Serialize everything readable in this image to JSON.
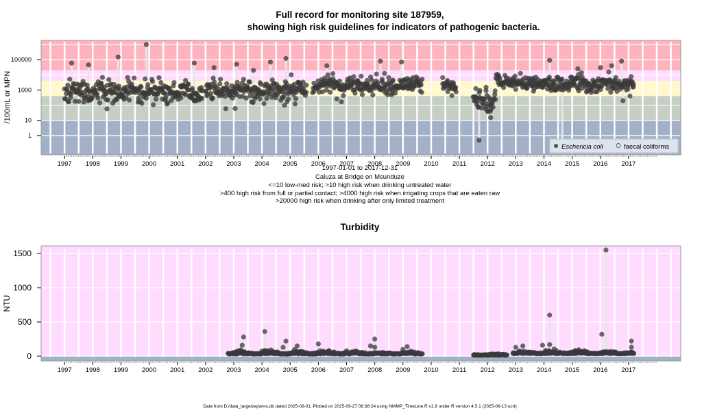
{
  "titles": {
    "main_line1": "Full record for monitoring site 187959,",
    "main_line2": "showing high risk guidelines for indicators of pathogenic bacteria.",
    "turbidity": "Turbidity"
  },
  "subtitles": [
    "1997-01-01 to 2017-12-31",
    "Caluza at Bridge on Msunduze",
    "<=10 low-med risk; >10 high risk when drinking untreated water",
    ">400 high risk from full or partial contact; >4000 high risk when irrigating crops that are eaten raw",
    ">20000 high risk when drinking after only limited treatment"
  ],
  "footer": "Data from D:/data_large/wq/wms.db dated 2025-08-01. Plotted on 2025-09-27 08:38:24 using NMMP_TimeLine.R v1.9 under R version 4.5.1 (2025-06-13 ucrt)",
  "colors": {
    "band_red": "#ffb3bf",
    "band_pink": "#ffdcff",
    "band_yellow": "#fff8cc",
    "band_green": "#c5cfc3",
    "band_blue": "#a2b1c8",
    "turb_bg": "#ffdcff",
    "turb_blue": "#a2b1c8",
    "point": "#3a3a3a",
    "stem": "#e6e6e6",
    "grid": "#ffffff",
    "frame": "#999999"
  },
  "chart_data": [
    {
      "type": "scatter",
      "title": "Full record for monitoring site 187959, showing high risk guidelines for indicators of pathogenic bacteria.",
      "xlabel": "1997-01-01 to 2017-12-31",
      "ylabel": "/100mL or MPN",
      "yscale": "log10",
      "xlim": [
        1996.17,
        2018.85
      ],
      "ylim_log10": [
        -1.27,
        6.27
      ],
      "x_ticks": [
        "1997",
        "1998",
        "1999",
        "2000",
        "2001",
        "2002",
        "2003",
        "2004",
        "2005",
        "2006",
        "2007",
        "2008",
        "2009",
        "2010",
        "2011",
        "2012",
        "2013",
        "2014",
        "2015",
        "2016",
        "2017"
      ],
      "y_ticks": [
        1,
        10,
        1000,
        100000
      ],
      "y_tick_labels": [
        "1",
        "10",
        "1000",
        "100000"
      ],
      "bands": [
        {
          "from": 20000,
          "to": 10000000.0,
          "label": ">20000 high risk when drinking after only limited treatment",
          "color": "band_red"
        },
        {
          "from": 4000,
          "to": 20000,
          "label": ">4000 high risk when irrigating crops that are eaten raw",
          "color": "band_pink"
        },
        {
          "from": 400,
          "to": 4000,
          "label": ">400 high risk from full or partial contact",
          "color": "band_yellow"
        },
        {
          "from": 10,
          "to": 400,
          "label": ">10 high risk when drinking untreated water",
          "color": "band_green"
        },
        {
          "from": 0.01,
          "to": 10,
          "label": "<=10 low-med risk",
          "color": "band_blue"
        }
      ],
      "legend": {
        "position": "bottom-right",
        "entries": [
          "Eschericia coli",
          "faecal coliforms"
        ]
      },
      "segments": [
        {
          "start": 1997.0,
          "end": 2001.9,
          "median_log10": 2.9,
          "spread": 0.35
        },
        {
          "start": 2002.0,
          "end": 2005.6,
          "median_log10": 3.0,
          "spread": 0.33
        },
        {
          "start": 2005.8,
          "end": 2009.7,
          "median_log10": 3.3,
          "spread": 0.3
        },
        {
          "start": 2010.4,
          "end": 2010.9,
          "median_log10": 3.3,
          "spread": 0.25
        },
        {
          "start": 2011.5,
          "end": 2012.3,
          "median_log10": 2.3,
          "spread": 0.4
        },
        {
          "start": 2012.3,
          "end": 2013.0,
          "median_log10": 3.6,
          "spread": 0.2
        },
        {
          "start": 2013.0,
          "end": 2017.2,
          "median_log10": 3.4,
          "spread": 0.25
        }
      ],
      "outliers": [
        {
          "x": 1997.25,
          "y": 60000
        },
        {
          "x": 1997.85,
          "y": 45000
        },
        {
          "x": 1998.9,
          "y": 150000
        },
        {
          "x": 1999.9,
          "y": 1000000
        },
        {
          "x": 2001.6,
          "y": 60000
        },
        {
          "x": 2002.3,
          "y": 30000
        },
        {
          "x": 2003.1,
          "y": 50000
        },
        {
          "x": 2003.7,
          "y": 20000
        },
        {
          "x": 2004.3,
          "y": 70000
        },
        {
          "x": 2004.85,
          "y": 120000
        },
        {
          "x": 2006.3,
          "y": 40000
        },
        {
          "x": 2008.2,
          "y": 80000
        },
        {
          "x": 2008.95,
          "y": 70000
        },
        {
          "x": 2013.6,
          "y": 6000
        },
        {
          "x": 2014.2,
          "y": 90000
        },
        {
          "x": 2015.2,
          "y": 25000
        },
        {
          "x": 2016.0,
          "y": 30000
        },
        {
          "x": 2016.4,
          "y": 40000
        },
        {
          "x": 2016.75,
          "y": 80000
        },
        {
          "x": 2011.7,
          "y": 0.5
        },
        {
          "x": 2011.6,
          "y": 300
        },
        {
          "x": 2011.95,
          "y": 80
        },
        {
          "x": 2012.1,
          "y": 40
        },
        {
          "x": 2004.8,
          "y": 100
        },
        {
          "x": 2003.05,
          "y": 60
        },
        {
          "x": 2016.8,
          "y": 200
        },
        {
          "x": 2017.05,
          "y": 400
        }
      ],
      "faecal_coliform_points": [
        {
          "x": 2014.65,
          "y": 0.5
        }
      ]
    },
    {
      "type": "scatter",
      "title": "Turbidity",
      "ylabel": "NTU",
      "xlim": [
        1996.17,
        2018.85
      ],
      "ylim": [
        -70,
        1610
      ],
      "x_ticks": [
        "1997",
        "1998",
        "1999",
        "2000",
        "2001",
        "2002",
        "2003",
        "2004",
        "2005",
        "2006",
        "2007",
        "2008",
        "2009",
        "2010",
        "2011",
        "2012",
        "2013",
        "2014",
        "2015",
        "2016",
        "2017"
      ],
      "y_ticks": [
        0,
        500,
        1000,
        1500
      ],
      "bands": [
        {
          "from": -70,
          "to": 5,
          "color": "turb_blue"
        },
        {
          "from": 5,
          "to": 1610,
          "color": "turb_bg"
        }
      ],
      "segments": [
        {
          "start": 2002.8,
          "end": 2009.7,
          "median": 30,
          "spread": 25
        },
        {
          "start": 2011.5,
          "end": 2012.7,
          "median": 15,
          "spread": 10
        },
        {
          "start": 2012.9,
          "end": 2017.2,
          "median": 35,
          "spread": 25
        }
      ],
      "outliers": [
        {
          "x": 2003.3,
          "y": 160
        },
        {
          "x": 2003.35,
          "y": 280
        },
        {
          "x": 2004.1,
          "y": 360
        },
        {
          "x": 2004.85,
          "y": 220
        },
        {
          "x": 2004.75,
          "y": 130
        },
        {
          "x": 2005.25,
          "y": 150
        },
        {
          "x": 2006.0,
          "y": 180
        },
        {
          "x": 2007.0,
          "y": 80
        },
        {
          "x": 2007.85,
          "y": 150
        },
        {
          "x": 2008.0,
          "y": 250
        },
        {
          "x": 2008.0,
          "y": 130
        },
        {
          "x": 2009.0,
          "y": 100
        },
        {
          "x": 2009.15,
          "y": 140
        },
        {
          "x": 2013.0,
          "y": 130
        },
        {
          "x": 2013.25,
          "y": 150
        },
        {
          "x": 2013.95,
          "y": 160
        },
        {
          "x": 2014.2,
          "y": 600
        },
        {
          "x": 2014.2,
          "y": 170
        },
        {
          "x": 2015.1,
          "y": 80
        },
        {
          "x": 2016.05,
          "y": 320
        },
        {
          "x": 2016.2,
          "y": 1550
        },
        {
          "x": 2017.1,
          "y": 220
        },
        {
          "x": 2017.1,
          "y": 130
        }
      ]
    }
  ]
}
